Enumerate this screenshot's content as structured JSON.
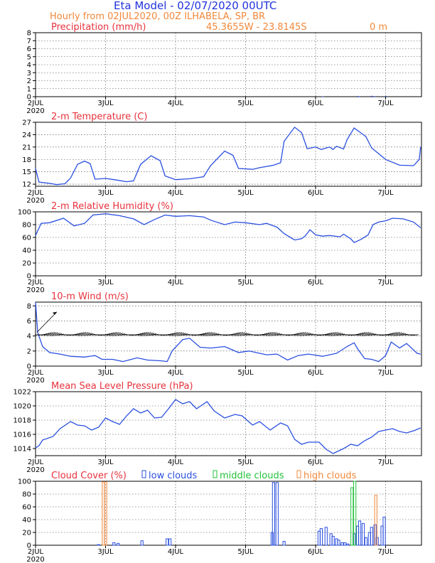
{
  "header": {
    "title": "Eta Model - 02/07/2020 00UTC",
    "subtitle": "Hourly from 02JUL2020, 00Z  ILHABELA, SP, BR",
    "coords": "45.3655W - 23.8145S",
    "elevation": "0  m"
  },
  "colors": {
    "title": "#2233dd",
    "header": "#f0883a",
    "panel_title": "#e8323c",
    "series": "#2a4fe0",
    "low": "#2a4fe0",
    "middle": "#22c23a",
    "high": "#f0883a"
  },
  "x_ticks": [
    "2JUL",
    "3JUL",
    "4JUL",
    "5JUL",
    "6JUL",
    "7JUL"
  ],
  "x_year": "2020",
  "chart_data": [
    {
      "type": "bar",
      "id": "precip",
      "title": "Precipitation (mm/h)",
      "ylim": [
        0,
        8
      ],
      "yticks": [
        0,
        1,
        2,
        3,
        4,
        5,
        6,
        7,
        8
      ],
      "bars": [
        [
          4.1,
          0.05
        ],
        [
          4.6,
          0.08
        ],
        [
          4.62,
          0.06
        ],
        [
          4.8,
          0.1
        ],
        [
          4.85,
          0.06
        ],
        [
          5.0,
          0.08
        ]
      ]
    },
    {
      "type": "line",
      "id": "temp",
      "title": "2-m Temperature (C)",
      "ylim": [
        11.5,
        27
      ],
      "yticks": [
        12,
        15,
        18,
        21,
        24,
        27
      ],
      "points": [
        [
          0,
          15.8
        ],
        [
          0.05,
          12.5
        ],
        [
          0.2,
          12.2
        ],
        [
          0.3,
          11.9
        ],
        [
          0.42,
          12.1
        ],
        [
          0.5,
          13.5
        ],
        [
          0.6,
          16.8
        ],
        [
          0.7,
          17.6
        ],
        [
          0.78,
          17.0
        ],
        [
          0.85,
          13.2
        ],
        [
          1.0,
          13.4
        ],
        [
          1.12,
          13.1
        ],
        [
          1.3,
          12.6
        ],
        [
          1.4,
          12.8
        ],
        [
          1.5,
          16.8
        ],
        [
          1.65,
          18.9
        ],
        [
          1.78,
          17.7
        ],
        [
          1.85,
          14.0
        ],
        [
          2.0,
          13.1
        ],
        [
          2.2,
          13.3
        ],
        [
          2.4,
          13.8
        ],
        [
          2.5,
          16.5
        ],
        [
          2.7,
          20.0
        ],
        [
          2.82,
          19.0
        ],
        [
          2.9,
          15.8
        ],
        [
          3.1,
          15.6
        ],
        [
          3.2,
          16.0
        ],
        [
          3.4,
          16.6
        ],
        [
          3.5,
          17.2
        ],
        [
          3.55,
          22.4
        ],
        [
          3.7,
          25.8
        ],
        [
          3.8,
          24.5
        ],
        [
          3.88,
          20.6
        ],
        [
          4.0,
          21.0
        ],
        [
          4.08,
          20.4
        ],
        [
          4.2,
          21.0
        ],
        [
          4.25,
          20.4
        ],
        [
          4.3,
          21.2
        ],
        [
          4.4,
          20.5
        ],
        [
          4.45,
          22.8
        ],
        [
          4.55,
          25.6
        ],
        [
          4.65,
          24.4
        ],
        [
          4.72,
          23.5
        ],
        [
          4.8,
          20.8
        ],
        [
          5.0,
          18.0
        ],
        [
          5.2,
          16.6
        ],
        [
          5.4,
          16.5
        ],
        [
          5.48,
          18.0
        ],
        [
          5.5,
          21.0
        ]
      ]
    },
    {
      "type": "line",
      "id": "rh",
      "title": "2-m Relative Humidity (%)",
      "ylim": [
        0,
        100
      ],
      "yticks": [
        0,
        20,
        40,
        60,
        80,
        100
      ],
      "points": [
        [
          0,
          63
        ],
        [
          0.08,
          82
        ],
        [
          0.2,
          83
        ],
        [
          0.4,
          90
        ],
        [
          0.55,
          78
        ],
        [
          0.7,
          82
        ],
        [
          0.82,
          95
        ],
        [
          1.0,
          97
        ],
        [
          1.2,
          94
        ],
        [
          1.4,
          89
        ],
        [
          1.55,
          80
        ],
        [
          1.7,
          88
        ],
        [
          1.85,
          95
        ],
        [
          2.0,
          93
        ],
        [
          2.2,
          94
        ],
        [
          2.4,
          92
        ],
        [
          2.5,
          87
        ],
        [
          2.7,
          80
        ],
        [
          2.85,
          84
        ],
        [
          3.0,
          83
        ],
        [
          3.2,
          80
        ],
        [
          3.3,
          82
        ],
        [
          3.45,
          76
        ],
        [
          3.55,
          66
        ],
        [
          3.7,
          56
        ],
        [
          3.8,
          58
        ],
        [
          3.85,
          62
        ],
        [
          3.92,
          72
        ],
        [
          4.0,
          64
        ],
        [
          4.1,
          62
        ],
        [
          4.2,
          63
        ],
        [
          4.35,
          61
        ],
        [
          4.4,
          65
        ],
        [
          4.5,
          58
        ],
        [
          4.55,
          52
        ],
        [
          4.65,
          57
        ],
        [
          4.75,
          64
        ],
        [
          4.82,
          80
        ],
        [
          4.9,
          84
        ],
        [
          5.0,
          86
        ],
        [
          5.1,
          90
        ],
        [
          5.25,
          89
        ],
        [
          5.4,
          84
        ],
        [
          5.5,
          75
        ]
      ]
    },
    {
      "type": "line",
      "id": "wind",
      "title": "10-m Wind (m/s)",
      "ylim": [
        0,
        8.5
      ],
      "yticks": [
        0,
        2,
        4,
        6,
        8
      ],
      "points": [
        [
          0,
          8.5
        ],
        [
          0.03,
          4.5
        ],
        [
          0.1,
          2.6
        ],
        [
          0.2,
          1.8
        ],
        [
          0.35,
          1.6
        ],
        [
          0.5,
          1.3
        ],
        [
          0.7,
          1.2
        ],
        [
          0.85,
          1.4
        ],
        [
          0.95,
          0.9
        ],
        [
          1.1,
          0.9
        ],
        [
          1.25,
          0.6
        ],
        [
          1.45,
          1.1
        ],
        [
          1.6,
          0.8
        ],
        [
          1.8,
          0.7
        ],
        [
          1.88,
          0.6
        ],
        [
          1.95,
          2.0
        ],
        [
          2.1,
          3.5
        ],
        [
          2.2,
          3.7
        ],
        [
          2.35,
          2.5
        ],
        [
          2.5,
          2.4
        ],
        [
          2.7,
          2.6
        ],
        [
          2.9,
          1.8
        ],
        [
          3.05,
          2.0
        ],
        [
          3.3,
          1.5
        ],
        [
          3.45,
          1.6
        ],
        [
          3.6,
          0.8
        ],
        [
          3.75,
          1.4
        ],
        [
          3.9,
          1.6
        ],
        [
          4.1,
          1.3
        ],
        [
          4.3,
          1.7
        ],
        [
          4.45,
          2.6
        ],
        [
          4.55,
          3.1
        ],
        [
          4.6,
          2.3
        ],
        [
          4.7,
          1.0
        ],
        [
          4.8,
          0.9
        ],
        [
          4.9,
          0.6
        ],
        [
          5.0,
          1.4
        ],
        [
          5.08,
          3.2
        ],
        [
          5.2,
          2.4
        ],
        [
          5.3,
          3.0
        ],
        [
          5.45,
          1.7
        ],
        [
          5.5,
          1.6
        ]
      ]
    },
    {
      "type": "line",
      "id": "mslp",
      "title": "Mean Sea Level Pressure (hPa)",
      "ylim": [
        1013,
        1022
      ],
      "yticks": [
        1014,
        1016,
        1018,
        1020,
        1022
      ],
      "points": [
        [
          0,
          1014.1
        ],
        [
          0.05,
          1014.4
        ],
        [
          0.1,
          1015.2
        ],
        [
          0.25,
          1015.7
        ],
        [
          0.35,
          1016.8
        ],
        [
          0.5,
          1017.8
        ],
        [
          0.6,
          1017.3
        ],
        [
          0.7,
          1017.2
        ],
        [
          0.8,
          1016.6
        ],
        [
          0.9,
          1017.0
        ],
        [
          1.0,
          1018.3
        ],
        [
          1.1,
          1017.8
        ],
        [
          1.2,
          1017.4
        ],
        [
          1.3,
          1018.6
        ],
        [
          1.4,
          1019.6
        ],
        [
          1.5,
          1019.0
        ],
        [
          1.6,
          1019.4
        ],
        [
          1.7,
          1018.3
        ],
        [
          1.8,
          1018.4
        ],
        [
          1.9,
          1019.6
        ],
        [
          2.0,
          1020.9
        ],
        [
          2.1,
          1020.3
        ],
        [
          2.2,
          1020.6
        ],
        [
          2.3,
          1019.6
        ],
        [
          2.45,
          1020.6
        ],
        [
          2.55,
          1019.3
        ],
        [
          2.7,
          1018.3
        ],
        [
          2.85,
          1018.8
        ],
        [
          2.95,
          1018.6
        ],
        [
          3.1,
          1017.3
        ],
        [
          3.2,
          1017.8
        ],
        [
          3.35,
          1016.6
        ],
        [
          3.5,
          1017.6
        ],
        [
          3.6,
          1017.2
        ],
        [
          3.7,
          1015.3
        ],
        [
          3.8,
          1014.6
        ],
        [
          3.9,
          1014.9
        ],
        [
          4.05,
          1014.9
        ],
        [
          4.15,
          1013.9
        ],
        [
          4.25,
          1013.3
        ],
        [
          4.4,
          1014.0
        ],
        [
          4.5,
          1014.6
        ],
        [
          4.6,
          1014.4
        ],
        [
          4.7,
          1015.1
        ],
        [
          4.8,
          1015.6
        ],
        [
          4.9,
          1016.4
        ],
        [
          5.0,
          1016.6
        ],
        [
          5.1,
          1016.8
        ],
        [
          5.2,
          1016.4
        ],
        [
          5.3,
          1016.2
        ],
        [
          5.4,
          1016.5
        ],
        [
          5.5,
          1016.9
        ]
      ]
    },
    {
      "type": "bar",
      "id": "cloud",
      "title": "Cloud Cover (%)",
      "ylim": [
        0,
        100
      ],
      "yticks": [
        0,
        20,
        40,
        60,
        80,
        100
      ],
      "legend": [
        "low clouds",
        "middle clouds",
        "high clouds"
      ],
      "series": [
        {
          "name": "low clouds",
          "bars": [
            [
              0.9,
              1
            ],
            [
              1.12,
              4
            ],
            [
              1.18,
              3
            ],
            [
              1.52,
              7
            ],
            [
              1.88,
              10
            ],
            [
              1.92,
              10
            ],
            [
              3.38,
              20
            ],
            [
              3.4,
              98
            ],
            [
              3.45,
              98
            ],
            [
              3.55,
              6
            ],
            [
              4.05,
              22
            ],
            [
              4.08,
              26
            ],
            [
              4.15,
              28
            ],
            [
              4.22,
              18
            ],
            [
              4.25,
              14
            ],
            [
              4.3,
              10
            ],
            [
              4.33,
              8
            ],
            [
              4.38,
              4
            ],
            [
              4.42,
              4
            ],
            [
              4.46,
              2
            ],
            [
              4.55,
              18
            ],
            [
              4.6,
              30
            ],
            [
              4.63,
              38
            ],
            [
              4.68,
              34
            ],
            [
              4.72,
              12
            ],
            [
              4.77,
              20
            ],
            [
              4.8,
              28
            ],
            [
              4.85,
              32
            ],
            [
              4.88,
              12
            ],
            [
              4.95,
              30
            ],
            [
              4.98,
              44
            ]
          ]
        },
        {
          "name": "middle clouds",
          "bars": [
            [
              4.52,
              90
            ],
            [
              4.56,
              100
            ]
          ]
        },
        {
          "name": "high clouds",
          "bars": [
            [
              0.97,
              99
            ],
            [
              1.0,
              99
            ],
            [
              4.86,
              78
            ]
          ]
        }
      ]
    }
  ]
}
